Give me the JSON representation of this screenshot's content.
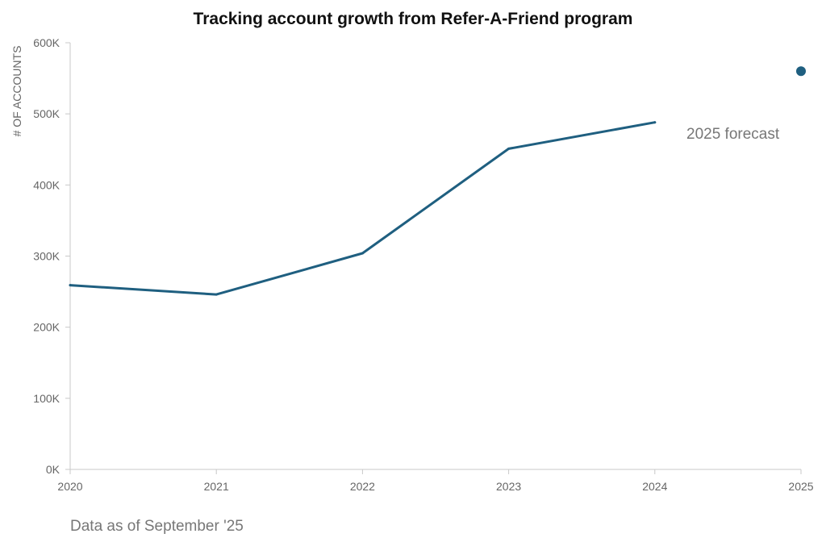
{
  "chart_data": {
    "type": "line",
    "title": "Tracking account growth from Refer-A-Friend program",
    "ylabel": "# OF ACCOUNTS",
    "xlabel": "",
    "x": [
      2020,
      2021,
      2022,
      2023,
      2024
    ],
    "series": [
      {
        "values": [
          259000,
          246000,
          304000,
          451000,
          488000
        ]
      }
    ],
    "forecast": {
      "x": 2025,
      "value": 560000,
      "label": "2025 forecast"
    },
    "xlim": [
      2020,
      2025
    ],
    "ylim": [
      0,
      600000
    ],
    "x_ticks": [
      "2020",
      "2021",
      "2022",
      "2023",
      "2024",
      "2025"
    ],
    "y_ticks": [
      {
        "value": 0,
        "label": "0K"
      },
      {
        "value": 100000,
        "label": "100K"
      },
      {
        "value": 200000,
        "label": "200K"
      },
      {
        "value": 300000,
        "label": "300K"
      },
      {
        "value": 400000,
        "label": "400K"
      },
      {
        "value": 500000,
        "label": "500K"
      },
      {
        "value": 600000,
        "label": "600K"
      }
    ],
    "grid": false,
    "line_color": "#1f5f80",
    "footnote": "Data as of September '25"
  }
}
